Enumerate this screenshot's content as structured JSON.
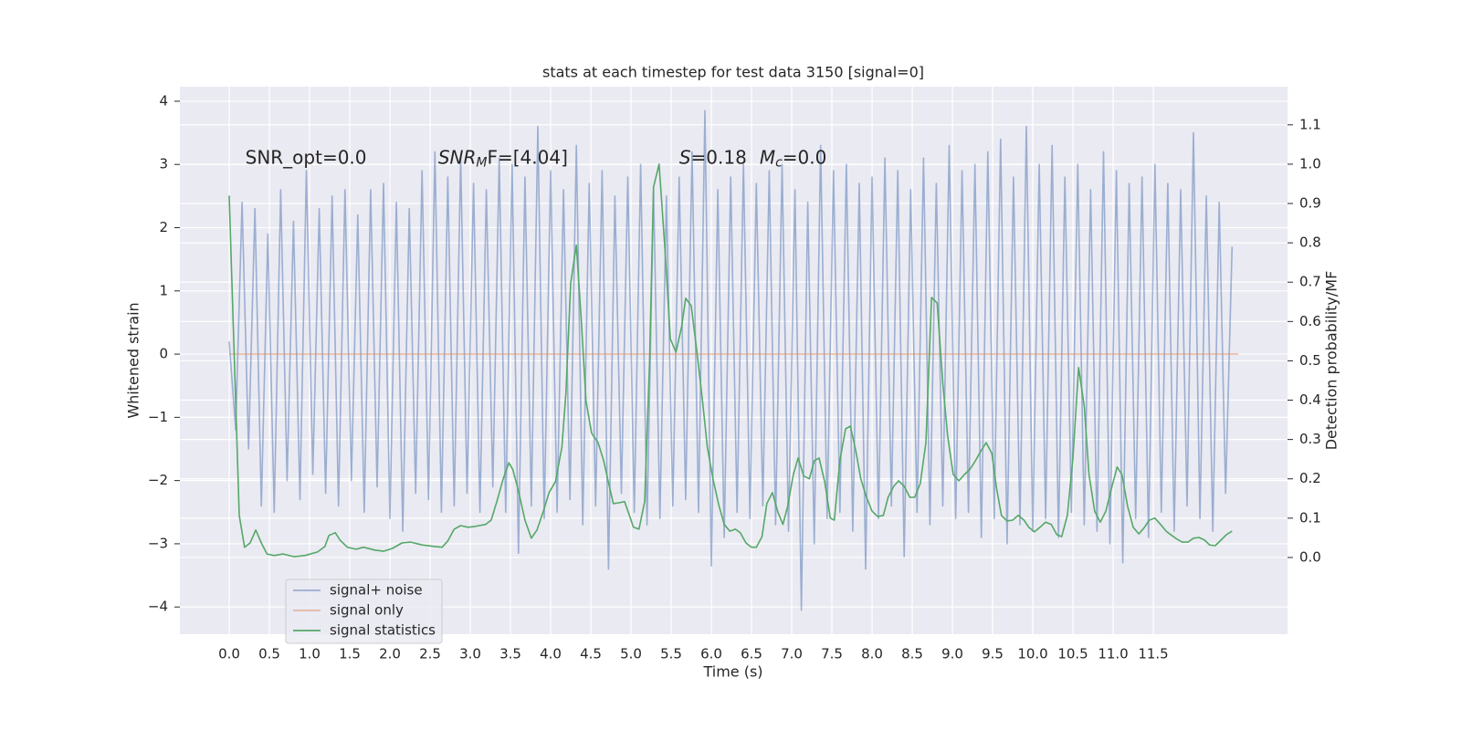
{
  "chart_data": {
    "type": "line",
    "title": "stats at each timestep for test data 3150 [signal=0]",
    "xlabel": "Time (s)",
    "ylabel": "Whitened strain",
    "y2label": "Detection probability/MF",
    "xlim": [
      -0.614,
      13.17
    ],
    "ylim": [
      -4.43,
      4.23
    ],
    "y2lim": [
      -0.195,
      1.197
    ],
    "xticks": [
      {
        "value": 0,
        "label": "0.0"
      },
      0.5,
      {
        "value": 1,
        "label": "1.0"
      },
      1.5,
      {
        "value": 2,
        "label": "2.0"
      },
      2.5,
      {
        "value": 3,
        "label": "3.0"
      },
      3.5,
      {
        "value": 4,
        "label": "4.0"
      },
      4.5,
      {
        "value": 5,
        "label": "5.0"
      },
      5.5,
      {
        "value": 6,
        "label": "6.0"
      },
      6.5,
      {
        "value": 7,
        "label": "7.0"
      },
      7.5,
      {
        "value": 8,
        "label": "8.0"
      },
      8.5,
      {
        "value": 9,
        "label": "9.0"
      },
      9.5,
      {
        "value": 10,
        "label": "10.0"
      },
      10.5,
      {
        "value": 11,
        "label": "11.0"
      },
      11.5
    ],
    "yticks": [
      {
        "value": -4,
        "label": "−4"
      },
      {
        "value": -3,
        "label": "−3"
      },
      {
        "value": -2,
        "label": "−2"
      },
      {
        "value": -1,
        "label": "−1"
      },
      0,
      1,
      2,
      3,
      4
    ],
    "y2ticks": [
      {
        "value": 0,
        "label": "0.0"
      },
      0.1,
      0.2,
      0.3,
      0.4,
      0.5,
      0.6,
      0.7,
      0.8,
      0.9,
      {
        "value": 1,
        "label": "1.0"
      },
      1.1
    ],
    "grid": true,
    "legend": "lower left",
    "annotations": [
      {
        "main": "SNR_opt=0.0",
        "x": 0.2,
        "y": 3.1
      },
      {
        "main": "SNR",
        "sub": "M",
        "tail": "F=[4.04]",
        "x": 2.6,
        "y": 3.1,
        "italic": true
      },
      {
        "main": "S",
        "tail": "=0.18",
        "x": 5.6,
        "y": 3.1,
        "italic": true
      },
      {
        "main": "M",
        "sub": "c",
        "tail": "=0.0",
        "x": 6.6,
        "y": 3.1,
        "italic": true
      }
    ],
    "series": [
      {
        "name": "signal+ noise",
        "color": "#4c72b0",
        "opacity": 0.5,
        "x": [
          0,
          0.08,
          0.16,
          0.24,
          0.32,
          0.4,
          0.48,
          0.56,
          0.64,
          0.72,
          0.8,
          0.88,
          0.96,
          1.04,
          1.12,
          1.2,
          1.28,
          1.36,
          1.44,
          1.52,
          1.6,
          1.68,
          1.76,
          1.84,
          1.92,
          2,
          2.08,
          2.16,
          2.24,
          2.32,
          2.4,
          2.48,
          2.56,
          2.64,
          2.72,
          2.8,
          2.88,
          2.96,
          3.04,
          3.12,
          3.2,
          3.28,
          3.36,
          3.44,
          3.52,
          3.6,
          3.68,
          3.76,
          3.84,
          3.92,
          4,
          4.08,
          4.16,
          4.24,
          4.32,
          4.4,
          4.48,
          4.56,
          4.64,
          4.72,
          4.8,
          4.88,
          4.96,
          5.04,
          5.12,
          5.2,
          5.28,
          5.36,
          5.44,
          5.52,
          5.6,
          5.68,
          5.76,
          5.84,
          5.92,
          6,
          6.08,
          6.16,
          6.24,
          6.32,
          6.4,
          6.48,
          6.56,
          6.64,
          6.72,
          6.8,
          6.88,
          6.96,
          7.04,
          7.12,
          7.2,
          7.28,
          7.36,
          7.44,
          7.52,
          7.6,
          7.68,
          7.76,
          7.84,
          7.92,
          8,
          8.08,
          8.16,
          8.24,
          8.32,
          8.4,
          8.48,
          8.56,
          8.64,
          8.72,
          8.8,
          8.88,
          8.96,
          9.04,
          9.12,
          9.2,
          9.28,
          9.36,
          9.44,
          9.52,
          9.6,
          9.68,
          9.76,
          9.84,
          9.92,
          10,
          10.08,
          10.16,
          10.24,
          10.32,
          10.4,
          10.48,
          10.56,
          10.64,
          10.72,
          10.8,
          10.88,
          10.96,
          11.04,
          11.12,
          11.2,
          11.28,
          11.36,
          11.44,
          11.52,
          11.6,
          11.68,
          11.76,
          11.84,
          11.92,
          12,
          12.08,
          12.16,
          12.24,
          12.32,
          12.4,
          12.48
        ],
        "values": [
          0.2,
          -1.2,
          2.4,
          -1.5,
          2.3,
          -2.4,
          1.9,
          -2.5,
          2.6,
          -2.0,
          2.1,
          -2.3,
          2.9,
          -1.9,
          2.3,
          -2.2,
          2.5,
          -2.4,
          2.6,
          -2.0,
          2.2,
          -2.5,
          2.6,
          -2.1,
          2.7,
          -2.6,
          2.4,
          -2.8,
          2.3,
          -2.2,
          2.9,
          -2.3,
          3.2,
          -2.5,
          2.8,
          -2.4,
          3.1,
          -2.2,
          2.7,
          -2.5,
          2.6,
          -2.1,
          3.1,
          -2.5,
          3.0,
          -3.15,
          2.8,
          -2.4,
          3.6,
          -2.6,
          2.9,
          -2.5,
          2.6,
          -2.3,
          3.3,
          -2.7,
          2.7,
          -2.4,
          2.9,
          -3.4,
          2.5,
          -2.2,
          2.8,
          -2.5,
          3.0,
          -2.7,
          2.6,
          -2.6,
          2.5,
          -2.4,
          2.8,
          -2.3,
          3.2,
          -2.5,
          3.85,
          -3.35,
          2.6,
          -2.9,
          2.8,
          -2.5,
          3.0,
          -2.6,
          2.7,
          -2.4,
          2.9,
          -2.7,
          3.0,
          -2.8,
          2.6,
          -4.05,
          2.4,
          -3.0,
          3.3,
          -2.6,
          2.9,
          -2.5,
          3.0,
          -2.8,
          2.7,
          -3.4,
          2.8,
          -2.6,
          3.1,
          -2.4,
          2.9,
          -3.2,
          2.6,
          -2.5,
          3.1,
          -2.7,
          2.7,
          -2.4,
          3.3,
          -2.6,
          2.9,
          -2.5,
          3.0,
          -2.9,
          3.2,
          -2.6,
          3.4,
          -3.0,
          2.8,
          -2.7,
          3.6,
          -2.8,
          3.0,
          -2.6,
          3.3,
          -2.9,
          2.8,
          -2.5,
          3.0,
          -2.7,
          2.6,
          -2.8,
          3.2,
          -3.0,
          2.9,
          -3.3,
          2.7,
          -2.6,
          2.8,
          -2.9,
          3.0,
          -2.5,
          2.7,
          -2.8,
          2.6,
          -2.4,
          3.5,
          -2.6,
          2.5,
          -2.8,
          2.4,
          -2.2,
          1.7
        ]
      },
      {
        "name": "signal only",
        "color": "#dd8452",
        "opacity": 0.5,
        "x": [
          0,
          12.56
        ],
        "values": [
          0,
          0
        ]
      },
      {
        "name": "signal statistics",
        "color": "#55a868",
        "opacity": 1,
        "axis": "y2",
        "x": [
          0,
          0.125,
          0.19,
          0.26,
          0.33,
          0.4,
          0.47,
          0.56,
          0.67,
          0.81,
          0.94,
          1.1,
          1.19,
          1.24,
          1.32,
          1.38,
          1.47,
          1.58,
          1.67,
          1.81,
          1.92,
          2.03,
          2.15,
          2.26,
          2.4,
          2.56,
          2.65,
          2.72,
          2.8,
          2.88,
          2.97,
          3.06,
          3.19,
          3.26,
          3.33,
          3.41,
          3.48,
          3.53,
          3.6,
          3.68,
          3.76,
          3.83,
          3.91,
          3.98,
          4.06,
          4.14,
          4.19,
          4.25,
          4.32,
          4.38,
          4.44,
          4.51,
          4.59,
          4.66,
          4.73,
          4.78,
          4.85,
          4.92,
          4.98,
          5.03,
          5.1,
          5.17,
          5.23,
          5.28,
          5.35,
          5.42,
          5.49,
          5.56,
          5.63,
          5.68,
          5.75,
          5.82,
          5.89,
          5.95,
          6.02,
          6.09,
          6.16,
          6.23,
          6.3,
          6.36,
          6.43,
          6.5,
          6.56,
          6.63,
          6.69,
          6.76,
          6.83,
          6.89,
          6.95,
          7.02,
          7.08,
          7.15,
          7.22,
          7.28,
          7.34,
          7.41,
          7.48,
          7.53,
          7.6,
          7.67,
          7.73,
          7.8,
          7.86,
          7.93,
          8,
          8.07,
          8.14,
          8.2,
          8.27,
          8.33,
          8.4,
          8.47,
          8.53,
          8.6,
          8.67,
          8.74,
          8.81,
          8.88,
          8.94,
          9.01,
          9.08,
          9.15,
          9.22,
          9.28,
          9.35,
          9.42,
          9.49,
          9.55,
          9.61,
          9.68,
          9.75,
          9.82,
          9.89,
          9.95,
          10.02,
          10.09,
          10.16,
          10.23,
          10.3,
          10.36,
          10.43,
          10.5,
          10.57,
          10.64,
          10.7,
          10.77,
          10.84,
          10.91,
          10.98,
          11.05,
          11.11,
          11.18,
          11.25,
          11.32,
          11.39,
          11.45,
          11.52,
          11.59,
          11.66,
          11.73,
          11.8,
          11.86,
          11.93,
          12,
          12.07,
          12.14,
          12.2,
          12.27,
          12.34,
          12.41,
          12.48
        ],
        "values": [
          0.92,
          0.107,
          0.026,
          0.037,
          0.07,
          0.037,
          0.009,
          0.005,
          0.009,
          0.002,
          0.005,
          0.014,
          0.028,
          0.056,
          0.063,
          0.044,
          0.026,
          0.021,
          0.026,
          0.019,
          0.016,
          0.023,
          0.037,
          0.039,
          0.032,
          0.028,
          0.026,
          0.042,
          0.072,
          0.081,
          0.077,
          0.079,
          0.084,
          0.095,
          0.142,
          0.2,
          0.241,
          0.223,
          0.169,
          0.095,
          0.049,
          0.07,
          0.118,
          0.165,
          0.193,
          0.281,
          0.42,
          0.698,
          0.794,
          0.606,
          0.397,
          0.316,
          0.292,
          0.246,
          0.181,
          0.137,
          0.139,
          0.142,
          0.107,
          0.077,
          0.072,
          0.142,
          0.49,
          0.942,
          1.0,
          0.791,
          0.555,
          0.522,
          0.587,
          0.659,
          0.64,
          0.524,
          0.397,
          0.281,
          0.2,
          0.135,
          0.084,
          0.067,
          0.072,
          0.063,
          0.037,
          0.026,
          0.026,
          0.053,
          0.137,
          0.165,
          0.114,
          0.084,
          0.13,
          0.211,
          0.253,
          0.207,
          0.2,
          0.246,
          0.253,
          0.193,
          0.1,
          0.095,
          0.246,
          0.327,
          0.334,
          0.269,
          0.2,
          0.153,
          0.118,
          0.104,
          0.107,
          0.153,
          0.181,
          0.195,
          0.181,
          0.153,
          0.153,
          0.188,
          0.292,
          0.661,
          0.647,
          0.443,
          0.309,
          0.211,
          0.195,
          0.211,
          0.225,
          0.244,
          0.269,
          0.292,
          0.265,
          0.176,
          0.107,
          0.093,
          0.095,
          0.107,
          0.095,
          0.077,
          0.065,
          0.077,
          0.09,
          0.084,
          0.058,
          0.053,
          0.107,
          0.253,
          0.483,
          0.385,
          0.211,
          0.118,
          0.09,
          0.118,
          0.176,
          0.23,
          0.211,
          0.13,
          0.077,
          0.06,
          0.077,
          0.095,
          0.1,
          0.084,
          0.067,
          0.056,
          0.046,
          0.039,
          0.039,
          0.049,
          0.051,
          0.044,
          0.032,
          0.03,
          0.044,
          0.058,
          0.067
        ]
      }
    ]
  }
}
